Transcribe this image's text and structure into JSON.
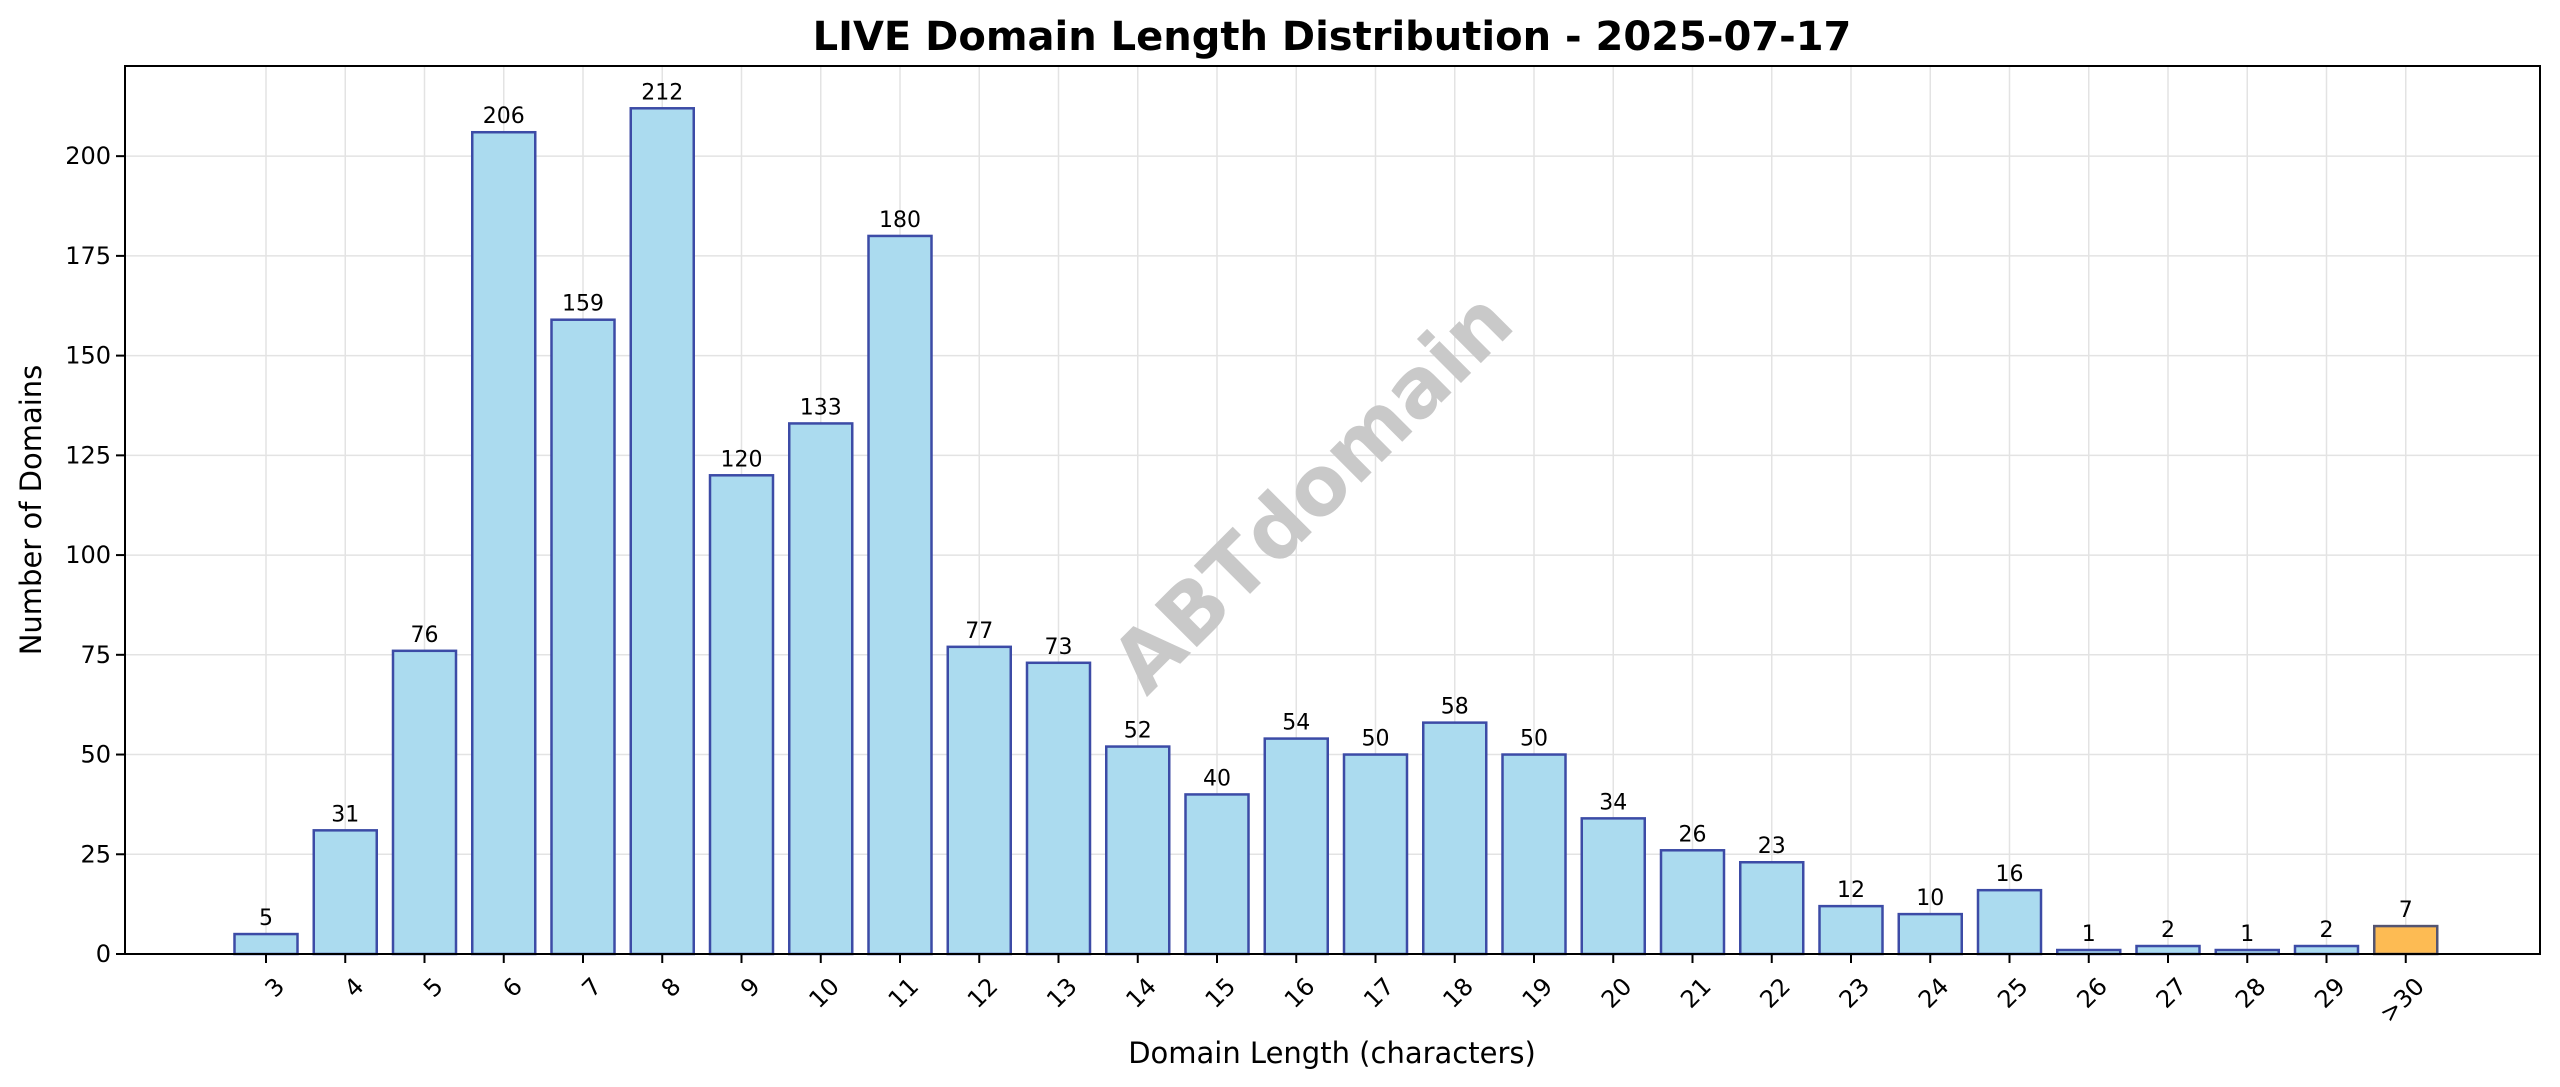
{
  "chart_data": {
    "type": "bar",
    "title": "LIVE Domain Length Distribution - 2025-07-17",
    "xlabel": "Domain Length (characters)",
    "ylabel": "Number of Domains",
    "categories": [
      "3",
      "4",
      "5",
      "6",
      "7",
      "8",
      "9",
      "10",
      "11",
      "12",
      "13",
      "14",
      "15",
      "16",
      "17",
      "18",
      "19",
      "20",
      "21",
      "22",
      "23",
      "24",
      "25",
      "26",
      "27",
      "28",
      "29",
      ">30"
    ],
    "values": [
      5,
      31,
      76,
      206,
      159,
      212,
      120,
      133,
      180,
      77,
      73,
      52,
      40,
      54,
      50,
      58,
      50,
      34,
      26,
      23,
      12,
      10,
      16,
      1,
      2,
      1,
      2,
      7
    ],
    "value_labels": [
      "5",
      "31",
      "76",
      "206",
      "159",
      "212",
      "120",
      "133",
      "180",
      "77",
      "73",
      "52",
      "40",
      "54",
      "50",
      "58",
      "50",
      "34",
      "26",
      "23",
      "12",
      "10",
      "16",
      "1",
      "2",
      "1",
      "2",
      "7"
    ],
    "ylim": [
      0,
      222.6
    ],
    "yticks": [
      0,
      25,
      50,
      75,
      100,
      125,
      150,
      175,
      200
    ],
    "ytick_labels": [
      "0",
      "25",
      "50",
      "75",
      "100",
      "125",
      "150",
      "175",
      "200"
    ],
    "grid": true,
    "colors": {
      "bar_fill": "#abdbef",
      "bar_edge": "#3c4ba6",
      "highlight_fill": "#fdbb53",
      "highlight_edge": "#545470",
      "grid": "#e3e3e3",
      "watermark": "#c9c9c9"
    },
    "highlight_category": ">30",
    "watermark": "ABTdomain"
  }
}
